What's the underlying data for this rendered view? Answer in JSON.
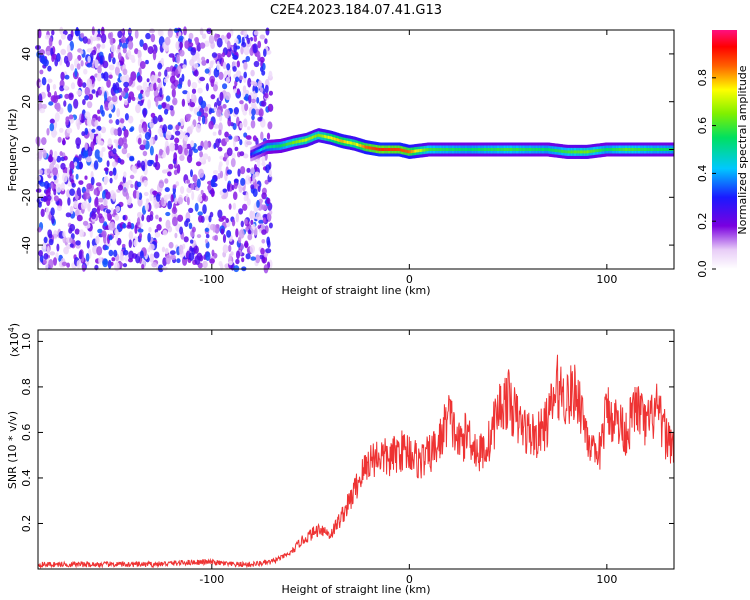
{
  "title": "C2E4.2023.184.07.41.G13",
  "chart_data": [
    {
      "type": "heatmap",
      "xlabel": "Height of straight line (km)",
      "ylabel": "Frequency (Hz)",
      "xlim": [
        -188,
        134
      ],
      "ylim": [
        -50,
        50
      ],
      "xticks": [
        -100,
        0,
        100
      ],
      "yticks": [
        -40,
        -20,
        0,
        20,
        40
      ],
      "colorbar": {
        "label": "Normalized spectral amplitude",
        "range": [
          0,
          1
        ],
        "ticks": [
          "0.0",
          "0.2",
          "0.4",
          "0.6",
          "0.8"
        ],
        "colormap": "rainbow (white-purple-blue-cyan-green-yellow-red-magenta)"
      },
      "ridge": {
        "description": "narrowband Doppler trace near 0 Hz",
        "x": [
          -80,
          -72,
          -65,
          -58,
          -52,
          -46,
          -40,
          -34,
          -28,
          -22,
          -15,
          -5,
          0,
          10,
          30,
          50,
          70,
          80,
          90,
          100,
          110,
          120,
          134
        ],
        "freq_hz": [
          -2,
          1,
          1.5,
          3,
          4,
          6,
          5,
          3.5,
          2.5,
          1,
          0,
          0,
          -1,
          0,
          0,
          0,
          0,
          -1,
          -1,
          0,
          0,
          0,
          0
        ],
        "amplitude": [
          0.3,
          0.5,
          0.55,
          0.65,
          0.7,
          0.65,
          0.75,
          0.8,
          0.7,
          0.85,
          0.9,
          0.88,
          0.85,
          0.6,
          0.55,
          0.6,
          0.55,
          0.6,
          0.65,
          0.55,
          0.62,
          0.58,
          0.55
        ]
      },
      "noise_region_x": [
        -188,
        -70
      ]
    },
    {
      "type": "line",
      "xlabel": "Height of straight line (km)",
      "ylabel": "SNR (10 * v/v)",
      "yscale_label": "(x10^4)",
      "yscale_base": "(x10",
      "yscale_exp": "4",
      "yscale_close": ")",
      "xlim": [
        -188,
        134
      ],
      "ylim": [
        0,
        1.05
      ],
      "xticks": [
        -100,
        0,
        100
      ],
      "yticks": [
        "0.2",
        "0.4",
        "0.6",
        "0.8",
        "1.0"
      ],
      "color": "#ee3333",
      "series": [
        {
          "x": [
            -188,
            -170,
            -150,
            -130,
            -110,
            -100,
            -90,
            -80,
            -70,
            -60,
            -55,
            -50,
            -45,
            -40,
            -35,
            -30,
            -25,
            -20,
            -15,
            -10,
            -5,
            0,
            5,
            10,
            15,
            20,
            25,
            30,
            35,
            40,
            45,
            50,
            55,
            60,
            65,
            70,
            75,
            80,
            85,
            90,
            95,
            100,
            105,
            110,
            115,
            120,
            125,
            130,
            134
          ],
          "values": [
            0.02,
            0.02,
            0.02,
            0.02,
            0.03,
            0.03,
            0.02,
            0.02,
            0.03,
            0.07,
            0.12,
            0.15,
            0.18,
            0.15,
            0.22,
            0.3,
            0.4,
            0.48,
            0.5,
            0.48,
            0.52,
            0.52,
            0.47,
            0.5,
            0.55,
            0.68,
            0.55,
            0.6,
            0.5,
            0.55,
            0.7,
            0.75,
            0.65,
            0.6,
            0.58,
            0.65,
            0.8,
            0.75,
            0.78,
            0.6,
            0.45,
            0.7,
            0.65,
            0.6,
            0.72,
            0.62,
            0.7,
            0.58,
            0.55
          ]
        }
      ]
    }
  ]
}
